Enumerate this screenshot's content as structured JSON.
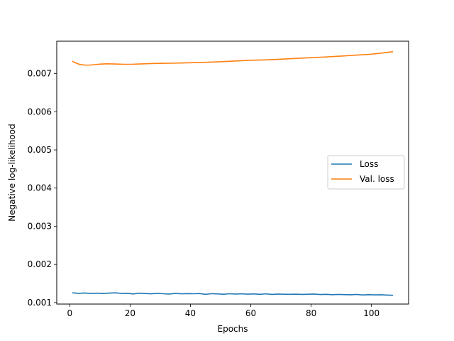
{
  "chart_data": {
    "type": "line",
    "title": "",
    "xlabel": "Epochs",
    "ylabel": "Negative log-likelihood",
    "xlim": [
      -4.3,
      112.3
    ],
    "ylim": [
      0.00096,
      0.00785
    ],
    "xticks": [
      0,
      20,
      40,
      60,
      80,
      100
    ],
    "xtick_labels": [
      "0",
      "20",
      "40",
      "60",
      "80",
      "100"
    ],
    "yticks": [
      0.001,
      0.002,
      0.003,
      0.004,
      0.005,
      0.006,
      0.007
    ],
    "ytick_labels": [
      "0.001",
      "0.002",
      "0.003",
      "0.004",
      "0.005",
      "0.006",
      "0.007"
    ],
    "grid": false,
    "legend_position": "right",
    "series": [
      {
        "name": "Loss",
        "color": "#1f77b4",
        "x": [
          1,
          3,
          5,
          7,
          9,
          11,
          13,
          15,
          17,
          19,
          21,
          23,
          25,
          27,
          29,
          31,
          33,
          35,
          37,
          39,
          41,
          43,
          45,
          47,
          49,
          51,
          53,
          55,
          57,
          59,
          61,
          63,
          65,
          67,
          69,
          71,
          73,
          75,
          77,
          79,
          81,
          83,
          85,
          87,
          89,
          91,
          93,
          95,
          97,
          99,
          101,
          103,
          105,
          107
        ],
        "y": [
          0.001255,
          0.00124,
          0.00125,
          0.001238,
          0.001245,
          0.001236,
          0.001248,
          0.001255,
          0.00124,
          0.001243,
          0.001225,
          0.001245,
          0.001236,
          0.001228,
          0.00124,
          0.00123,
          0.001222,
          0.00124,
          0.001228,
          0.001234,
          0.00123,
          0.001236,
          0.001215,
          0.001232,
          0.001226,
          0.001218,
          0.00123,
          0.001222,
          0.001228,
          0.00122,
          0.001226,
          0.001215,
          0.001228,
          0.001212,
          0.001222,
          0.001218,
          0.001215,
          0.00122,
          0.001212,
          0.001218,
          0.001222,
          0.00121,
          0.001214,
          0.001205,
          0.001212,
          0.001208,
          0.001203,
          0.001212,
          0.001198,
          0.001206,
          0.0012,
          0.001204,
          0.001196,
          0.00119
        ]
      },
      {
        "name": "Val. loss",
        "color": "#ff7f0e",
        "x": [
          1,
          2,
          3,
          4,
          5,
          6,
          7,
          8,
          10,
          12,
          15,
          18,
          21,
          24,
          27,
          30,
          35,
          40,
          45,
          50,
          55,
          60,
          65,
          70,
          75,
          80,
          85,
          90,
          95,
          100,
          103,
          105,
          107
        ],
        "y": [
          0.00732,
          0.00728,
          0.00725,
          0.007232,
          0.007225,
          0.007224,
          0.007226,
          0.007233,
          0.007248,
          0.007258,
          0.007252,
          0.007245,
          0.007247,
          0.007256,
          0.007265,
          0.00727,
          0.007275,
          0.007285,
          0.007298,
          0.007312,
          0.007332,
          0.00735,
          0.00736,
          0.007378,
          0.0074,
          0.007418,
          0.007438,
          0.00746,
          0.007485,
          0.00751,
          0.007535,
          0.007555,
          0.007575
        ]
      }
    ]
  }
}
